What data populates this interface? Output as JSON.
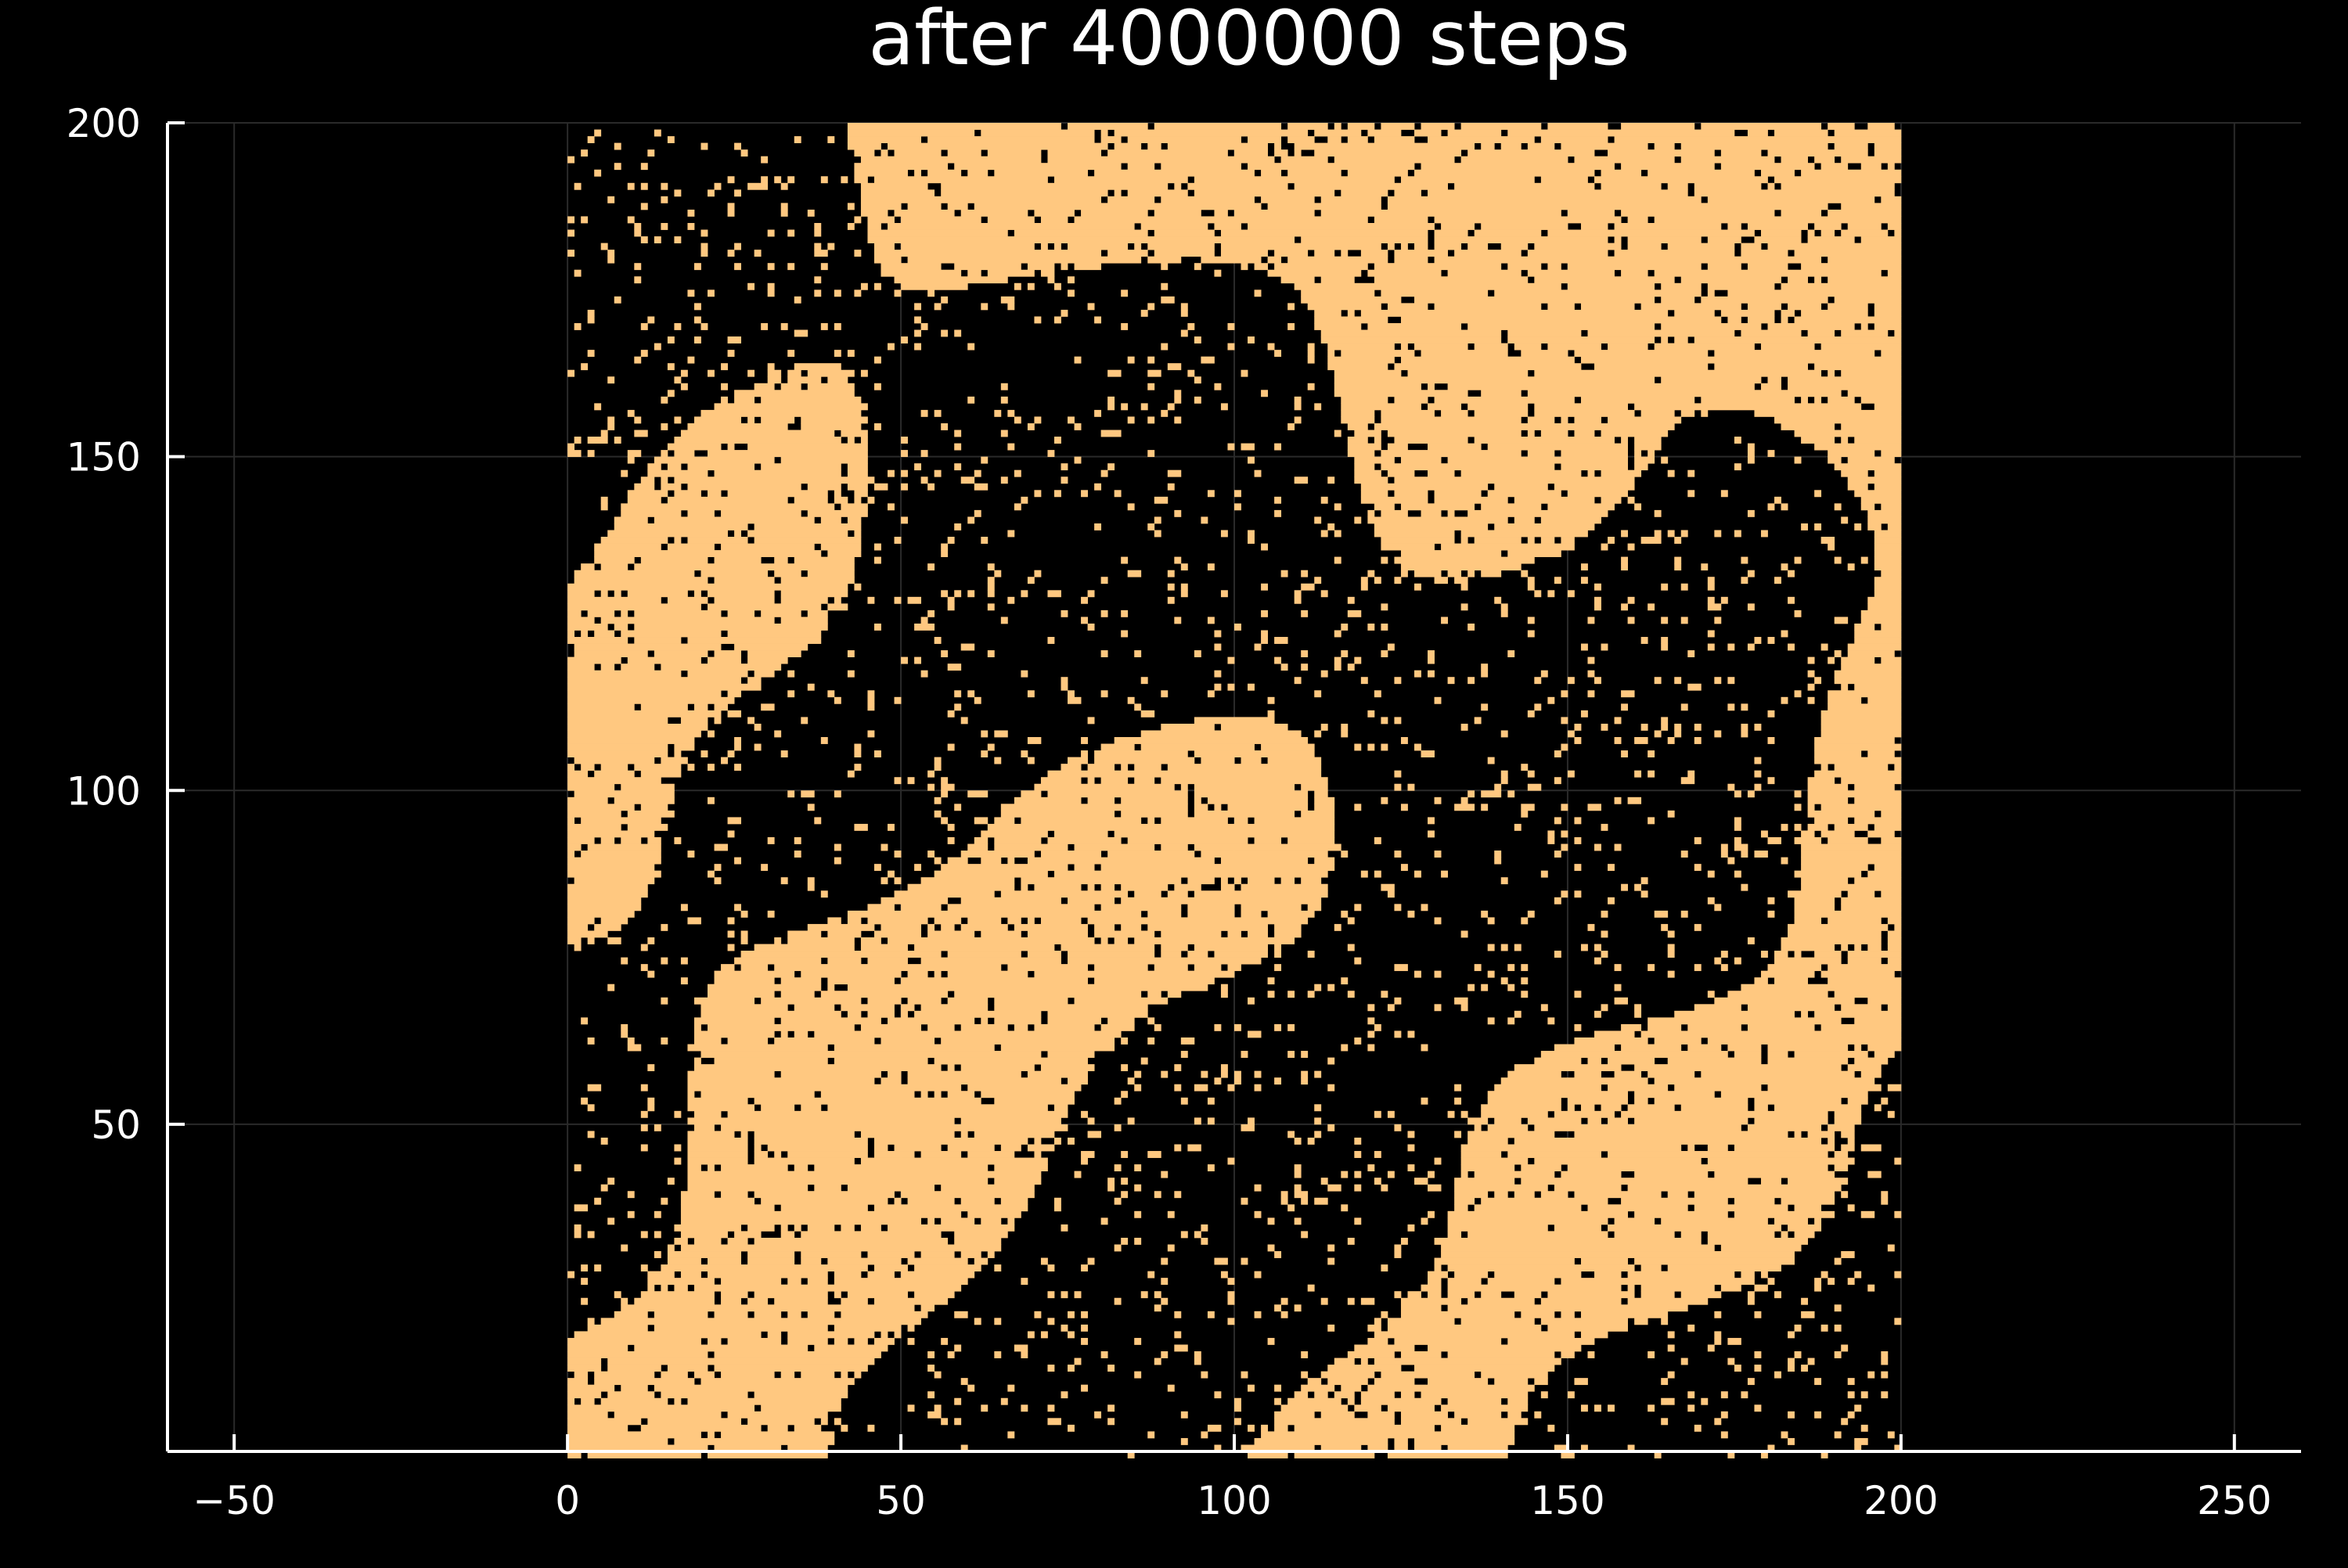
{
  "chart_data": {
    "type": "heatmap",
    "title": "after 4000000 steps",
    "xlabel": "",
    "ylabel": "",
    "xlim": [
      -60,
      260
    ],
    "ylim": [
      1,
      200
    ],
    "x_ticks": [
      -50,
      0,
      50,
      100,
      150,
      200,
      250
    ],
    "x_tick_labels": [
      "−50",
      "0",
      "50",
      "100",
      "150",
      "200",
      "250"
    ],
    "y_ticks": [
      50,
      100,
      150,
      200
    ],
    "y_tick_labels": [
      "50",
      "100",
      "150",
      "200"
    ],
    "grid": true,
    "grid_size": [
      200,
      200
    ],
    "lattice_extent": {
      "x": [
        0,
        200
      ],
      "y": [
        0,
        200
      ]
    },
    "states": [
      -1,
      1
    ],
    "colors": {
      "1": "#FFC880",
      "-1": "#000000"
    },
    "background": "#000000",
    "axis_color": "#ffffff",
    "grid_color": "#2a2a2a",
    "legend": "none"
  }
}
